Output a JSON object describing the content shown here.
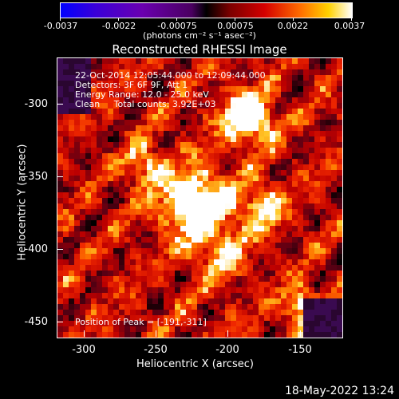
{
  "colorbar": {
    "labels": [
      "-0.0037",
      "-0.0022",
      "-0.00075",
      "0.00075",
      "0.0022",
      "0.0037"
    ],
    "units": "(photons cm⁻² s⁻¹ asec⁻²)"
  },
  "title": "Reconstructed RHESSI Image",
  "info": {
    "line1": "22-Oct-2014 12:05:44.000 to 12:09:44.000",
    "line2": "Detectors: 3F 6F 9F, Att 1",
    "line3": "Energy Range: 12.0 - 25.0 keV",
    "line4": "Clean     Total counts: 3.92E+03",
    "peak": "Position of Peak = [-191,-311]"
  },
  "axes": {
    "xlabel": "Heliocentric X (arcsec)",
    "ylabel": "Heliocentric Y (arcsec)",
    "xticks": [
      "-300",
      "-250",
      "-200",
      "-150"
    ],
    "yticks": [
      "-300",
      "-350",
      "-400",
      "-450"
    ]
  },
  "timestamp": "18-May-2022 13:24",
  "colors": {
    "background": "#000000",
    "text": "#ffffff"
  }
}
